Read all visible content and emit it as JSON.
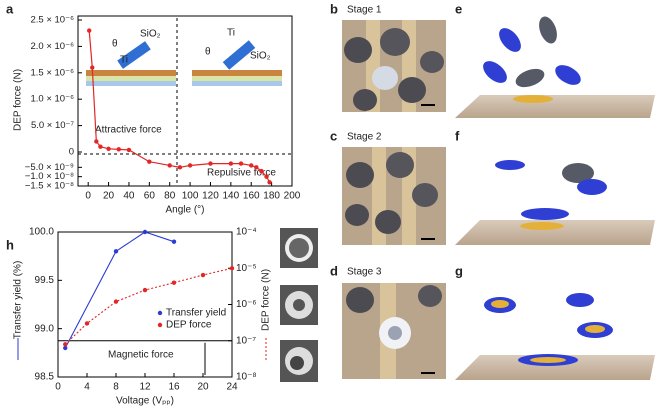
{
  "panels": {
    "a": "a",
    "b": "b",
    "c": "c",
    "d": "d",
    "e": "e",
    "f": "f",
    "g": "g",
    "h": "h"
  },
  "stages": [
    "Stage 1",
    "Stage 2",
    "Stage 3"
  ],
  "insets": [
    {
      "oxide": "SiO₂",
      "metal": "Ti",
      "angle": "θ"
    },
    {
      "oxide": "SiO₂",
      "metal": "Ti",
      "angle": "θ"
    }
  ],
  "chart_data": [
    {
      "type": "line",
      "ylabel": "DEP force (N)",
      "xlabel": "Angle (°)",
      "annotations": [
        "Attractive force",
        "Repulsive force"
      ],
      "color": "#e32626",
      "x": [
        1,
        4,
        8,
        12,
        20,
        30,
        40,
        60,
        80,
        90,
        100,
        120,
        140,
        150,
        160,
        165,
        170,
        175,
        178
      ],
      "values": [
        2.3e-06,
        1.6e-06,
        2e-07,
        1e-07,
        6e-08,
        5e-08,
        4e-08,
        -2e-09,
        -4e-09,
        -5e-09,
        -4e-09,
        -3e-09,
        -3e-09,
        -3e-09,
        -4e-09,
        -5e-09,
        -7e-09,
        -1e-08,
        -1.3e-08
      ],
      "xlim": [
        -10,
        200
      ],
      "xticks": [
        0,
        20,
        40,
        60,
        80,
        100,
        120,
        140,
        160,
        180,
        200
      ],
      "ylim": [
        0,
        2.5e-06
      ],
      "yticks": [
        0,
        {
          "value": 5e-07,
          "label": "5.0 × 10⁻⁷"
        },
        {
          "value": 1e-06,
          "label": "1.0 × 10⁻⁶"
        },
        {
          "value": 1.5e-06,
          "label": "1.5 × 10⁻⁶"
        },
        {
          "value": 2e-06,
          "label": "2.0 × 10⁻⁶"
        },
        {
          "value": 2.5e-06,
          "label": "2.5 × 10⁻⁶"
        }
      ],
      "lower_ylim": [
        -1.5e-08,
        0
      ],
      "lower_yticks": [
        {
          "value": -5e-09,
          "label": "−5.0 × 10⁻⁹"
        },
        {
          "value": -1e-08,
          "label": "−1.0 × 10⁻⁸"
        },
        {
          "value": -1.5e-08,
          "label": "−1.5 × 10⁻⁸"
        }
      ]
    },
    {
      "type": "line",
      "ylabel": "Transfer yield (%)",
      "y2label": "DEP force (N)",
      "xlabel": "Voltage (Vₚₚ)",
      "annotation": "Magnetic force",
      "annotation_value": 1e-07,
      "legend": "lower right",
      "y2log": true,
      "xlim": [
        0,
        24
      ],
      "xticks": [
        0,
        4,
        8,
        12,
        16,
        20,
        24
      ],
      "ylim": [
        98.5,
        100
      ],
      "yticks": [
        98.5,
        {
          "value": 99,
          "label": "99.0"
        },
        99.5,
        {
          "value": 100,
          "label": "100.0"
        }
      ],
      "y2lim": [
        1e-08,
        0.0001
      ],
      "y2ticks": [
        {
          "value": 1e-08,
          "label": "10⁻⁸"
        },
        {
          "value": 1e-07,
          "label": "10⁻⁷"
        },
        {
          "value": 1e-06,
          "label": "10⁻⁶"
        },
        {
          "value": 1e-05,
          "label": "10⁻⁵"
        },
        {
          "value": 0.0001,
          "label": "10⁻⁴"
        }
      ],
      "series": [
        {
          "name": "Transfer yield",
          "color": "#2b3bd6",
          "x": [
            1,
            8,
            12,
            16
          ],
          "values": [
            98.8,
            99.8,
            100.0,
            99.9
          ]
        },
        {
          "name": "DEP force",
          "color": "#e32626",
          "axis": "y2",
          "dashed": true,
          "x": [
            1,
            4,
            8,
            12,
            16,
            20,
            24
          ],
          "values": [
            8e-08,
            3e-07,
            1.2e-06,
            2.5e-06,
            4e-06,
            6.5e-06,
            1e-05
          ]
        }
      ]
    }
  ]
}
